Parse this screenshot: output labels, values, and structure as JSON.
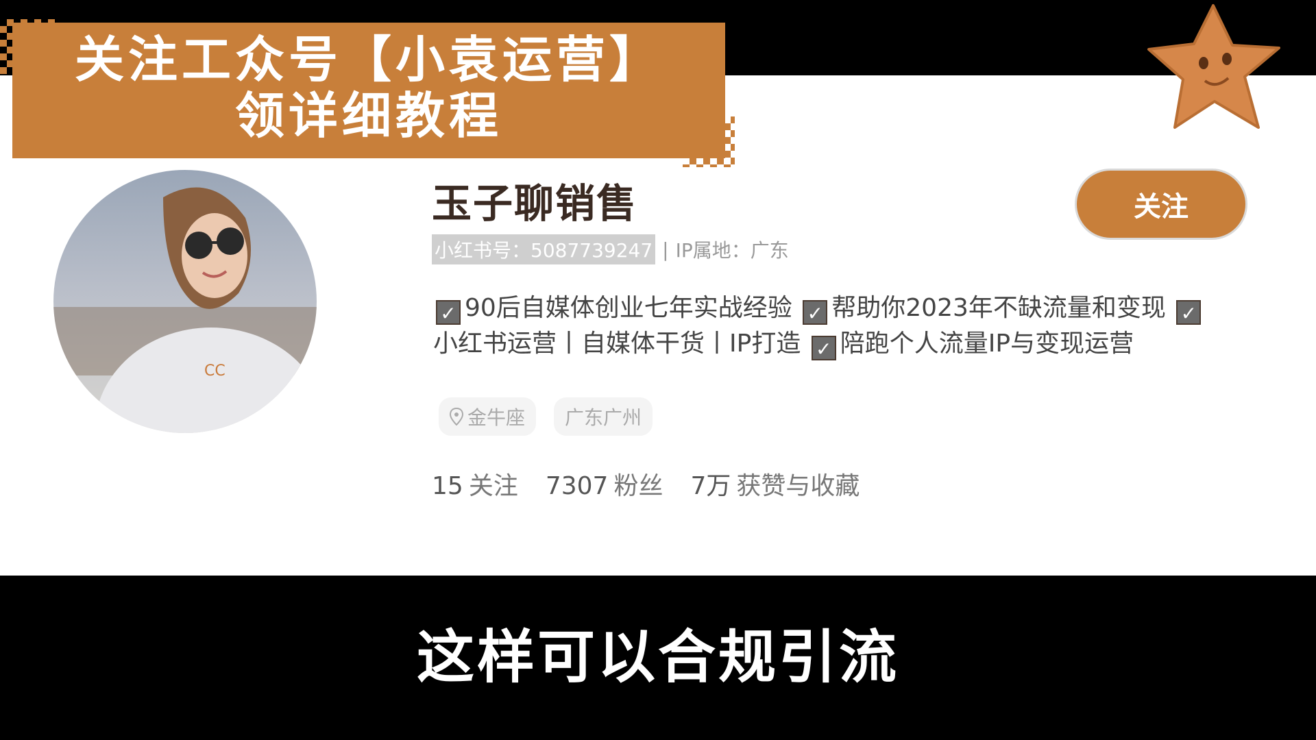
{
  "banner": {
    "line1": "关注工众号【小袁运营】",
    "line2": "领详细教程"
  },
  "profile": {
    "name": "玉子聊销售",
    "account_label": "小红书号：5087739247",
    "separator": "|",
    "ip_label": "IP属地：广东",
    "bio_segments": [
      "90后自媒体创业七年实战经验",
      "帮助你2023年不缺流量和变现",
      "小红书运营丨自媒体干货丨IP打造",
      "陪跑个人流量IP与变现运营"
    ],
    "tags": [
      "金牛座",
      "广东广州"
    ],
    "stats": [
      {
        "value": "15",
        "label": "关注"
      },
      {
        "value": "7307",
        "label": "粉丝"
      },
      {
        "value": "7万",
        "label": "获赞与收藏"
      }
    ],
    "follow_label": "关注"
  },
  "subtitle": "这样可以合规引流",
  "colors": {
    "accent": "#c87f3a",
    "background": "#000000"
  },
  "icons": {
    "check": "checkbox-icon",
    "location": "location-pin-icon",
    "mascot": "star-mascot-icon"
  }
}
